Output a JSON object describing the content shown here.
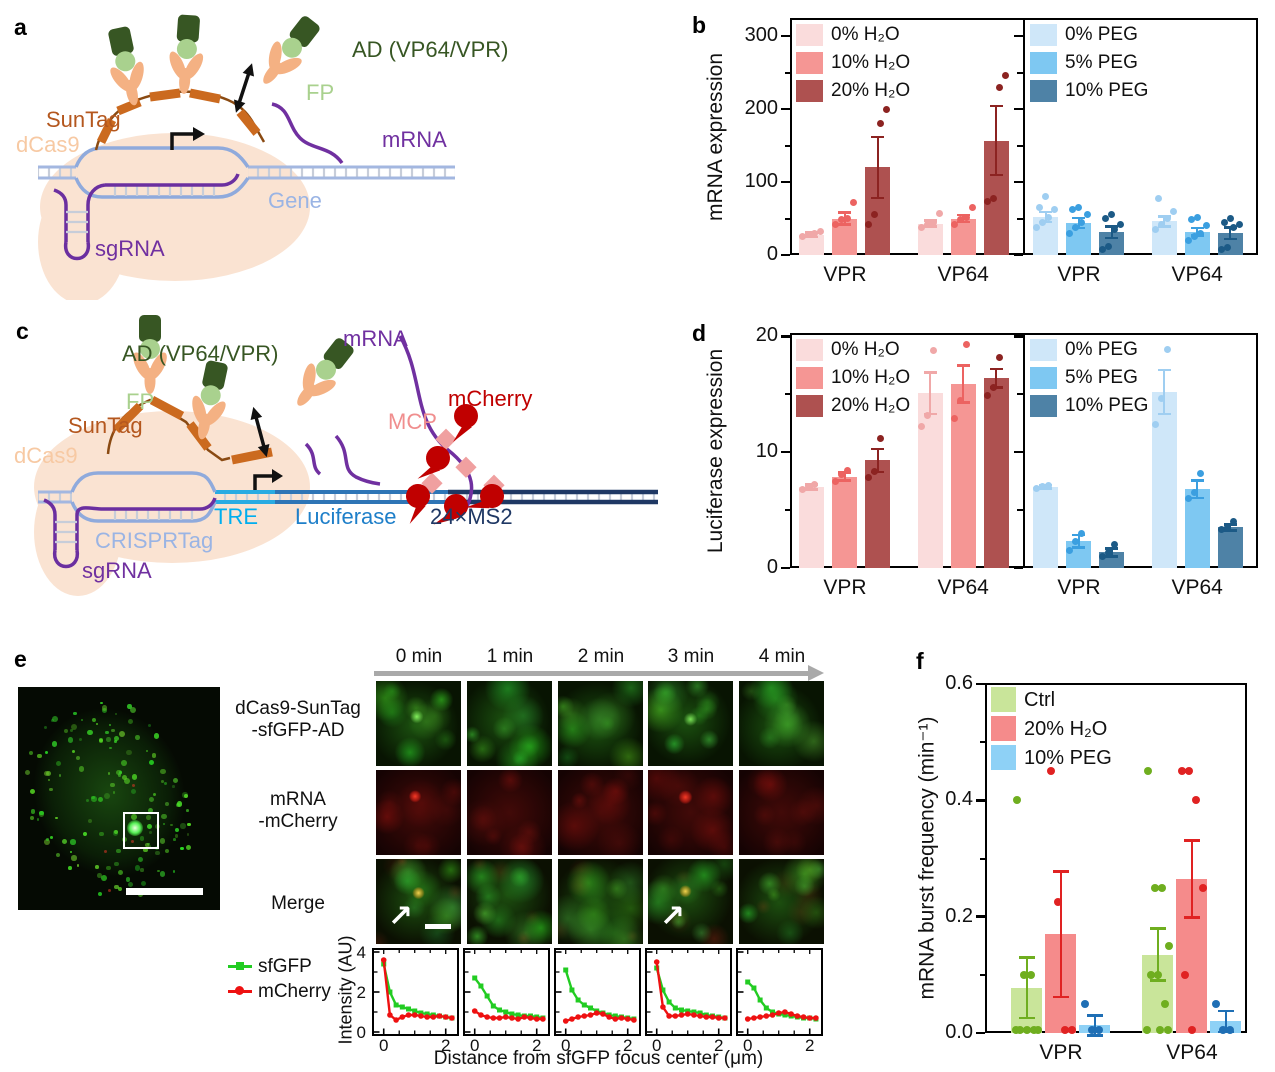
{
  "tags": {
    "a": "a",
    "b": "b",
    "c": "c",
    "d": "d",
    "e": "e",
    "f": "f"
  },
  "panel_a": {
    "labels": {
      "ad": "AD (VP64/VPR)",
      "fp": "FP",
      "suntag": "SunTag",
      "dcas9": "dCas9",
      "mrna": "mRNA",
      "gene": "Gene",
      "sgrna": "sgRNA"
    }
  },
  "panel_c": {
    "labels": {
      "ad": "AD (VP64/VPR)",
      "fp": "FP",
      "suntag": "SunTag",
      "dcas9": "dCas9",
      "mrna": "mRNA",
      "mcp": "MCP",
      "mcherry": "mCherry",
      "tre": "TRE",
      "luciferase": "Luciferase",
      "ms2": "24×MS2",
      "crisprtag": "CRISPRTag",
      "sgrna": "sgRNA"
    }
  },
  "panel_e": {
    "time_labels": [
      "0 min",
      "1 min",
      "2 min",
      "3 min",
      "4 min"
    ],
    "row_labels": [
      {
        "line1": "dCas9-SunTag",
        "line2": "-sfGFP-AD",
        "color": "#2dbe2d"
      },
      {
        "line1": "mRNA",
        "line2": "-mCherry",
        "color": "#e81313"
      },
      {
        "line1": "Merge",
        "line2": "",
        "color": "#c8961e"
      }
    ],
    "legend": [
      {
        "label": "sfGFP",
        "color": "#22cc22"
      },
      {
        "label": "mCherry",
        "color": "#ee1111"
      }
    ]
  },
  "chart_data": [
    {
      "id": "b",
      "type": "bar",
      "ylabel": "mRNA expression",
      "ylim": [
        0,
        325
      ],
      "yticks": [
        0,
        100,
        200,
        300
      ],
      "yticks_minor": [
        50,
        150,
        250
      ],
      "tick_decimals": 0,
      "subpanels": [
        {
          "legend": [
            {
              "label": "0% H₂O",
              "color": "#fadcdc",
              "point_color": "#f0a8a8"
            },
            {
              "label": "10% H₂O",
              "color": "#f59694",
              "point_color": "#ec6361"
            },
            {
              "label": "20% H₂O",
              "color": "#ae5150",
              "point_color": "#8c2321"
            }
          ],
          "groups": [
            {
              "label": "VPR",
              "bars": [
                {
                  "value": 28,
                  "err": 3,
                  "points": [
                    26,
                    28,
                    30,
                    32
                  ]
                },
                {
                  "value": 50,
                  "err": 8,
                  "points": [
                    42,
                    48,
                    50,
                    72
                  ]
                },
                {
                  "value": 120,
                  "err": 42,
                  "points": [
                    42,
                    55,
                    181,
                    200
                  ]
                }
              ]
            },
            {
              "label": "VP64",
              "bars": [
                {
                  "value": 43,
                  "err": 4,
                  "points": [
                    38,
                    42,
                    45,
                    57
                  ]
                },
                {
                  "value": 50,
                  "err": 5,
                  "points": [
                    42,
                    48,
                    52,
                    65
                  ]
                },
                {
                  "value": 157,
                  "err": 47,
                  "points": [
                    73,
                    77,
                    230,
                    246
                  ]
                }
              ]
            }
          ]
        },
        {
          "legend": [
            {
              "label": "0% PEG",
              "color": "#cfe7f9",
              "point_color": "#9fcef1"
            },
            {
              "label": "5% PEG",
              "color": "#7ec8f2",
              "point_color": "#3b9fe0"
            },
            {
              "label": "10% PEG",
              "color": "#4e82a6",
              "point_color": "#1c5a86"
            }
          ],
          "groups": [
            {
              "label": "VPR",
              "bars": [
                {
                  "value": 52,
                  "err": 7,
                  "points": [
                    38,
                    45,
                    52,
                    62,
                    65,
                    80
                  ]
                },
                {
                  "value": 44,
                  "err": 7,
                  "points": [
                    30,
                    38,
                    45,
                    55,
                    62,
                    65
                  ]
                },
                {
                  "value": 31,
                  "err": 8,
                  "points": [
                    8,
                    12,
                    35,
                    42,
                    50,
                    55
                  ]
                }
              ]
            },
            {
              "label": "VP64",
              "bars": [
                {
                  "value": 46,
                  "err": 7,
                  "points": [
                    35,
                    42,
                    50,
                    60,
                    78
                  ]
                },
                {
                  "value": 32,
                  "err": 5,
                  "points": [
                    20,
                    25,
                    30,
                    40,
                    48,
                    52
                  ]
                },
                {
                  "value": 30,
                  "err": 8,
                  "points": [
                    8,
                    10,
                    38,
                    42,
                    45,
                    50
                  ]
                }
              ]
            }
          ]
        }
      ]
    },
    {
      "id": "d",
      "type": "bar",
      "ylabel": "Luciferase expression",
      "ylim": [
        0,
        20.3
      ],
      "yticks": [
        0,
        10,
        20
      ],
      "yticks_minor": [
        5,
        15
      ],
      "tick_decimals": 0,
      "subpanels": [
        {
          "legend": [
            {
              "label": "0% H₂O",
              "color": "#fadcdc",
              "point_color": "#f0a8a8"
            },
            {
              "label": "10% H₂O",
              "color": "#f59694",
              "point_color": "#ec6361"
            },
            {
              "label": "20% H₂O",
              "color": "#ae5150",
              "point_color": "#8c2321"
            }
          ],
          "groups": [
            {
              "label": "VPR",
              "bars": [
                {
                  "value": 7.0,
                  "err": 0.2,
                  "points": [
                    6.8,
                    7.0,
                    7.2
                  ]
                },
                {
                  "value": 7.9,
                  "err": 0.35,
                  "points": [
                    7.5,
                    8.1,
                    8.4
                  ]
                },
                {
                  "value": 9.3,
                  "err": 1.0,
                  "points": [
                    7.8,
                    8.3,
                    11.2
                  ]
                }
              ]
            },
            {
              "label": "VP64",
              "bars": [
                {
                  "value": 15.1,
                  "err": 1.8,
                  "points": [
                    12.2,
                    13.2,
                    18.8
                  ]
                },
                {
                  "value": 15.9,
                  "err": 1.6,
                  "points": [
                    12.9,
                    14.5,
                    19.3
                  ]
                },
                {
                  "value": 16.4,
                  "err": 0.8,
                  "points": [
                    14.9,
                    15.6,
                    18.2
                  ]
                }
              ]
            }
          ]
        },
        {
          "legend": [
            {
              "label": "0% PEG",
              "color": "#cfe7f9",
              "point_color": "#9fcef1"
            },
            {
              "label": "5% PEG",
              "color": "#7ec8f2",
              "point_color": "#3b9fe0"
            },
            {
              "label": "10% PEG",
              "color": "#4e82a6",
              "point_color": "#1c5a86"
            }
          ],
          "groups": [
            {
              "label": "VPR",
              "bars": [
                {
                  "value": 7.0,
                  "err": 0.15,
                  "points": [
                    6.9,
                    7.0,
                    7.15
                  ]
                },
                {
                  "value": 2.3,
                  "err": 0.55,
                  "points": [
                    1.5,
                    2.3,
                    3.0
                  ]
                },
                {
                  "value": 1.35,
                  "err": 0.35,
                  "points": [
                    1.0,
                    1.3,
                    2.0
                  ]
                }
              ]
            },
            {
              "label": "VP64",
              "bars": [
                {
                  "value": 15.2,
                  "err": 1.9,
                  "points": [
                    12.4,
                    14.6,
                    18.9
                  ]
                },
                {
                  "value": 6.8,
                  "err": 0.75,
                  "points": [
                    6.0,
                    6.5,
                    8.2
                  ]
                },
                {
                  "value": 3.5,
                  "err": 0.25,
                  "points": [
                    3.3,
                    3.5,
                    4.0
                  ]
                }
              ]
            }
          ]
        }
      ]
    },
    {
      "id": "f",
      "type": "bar",
      "ylabel": "mRNA burst frequency (min⁻¹)",
      "ylim": [
        0,
        0.602
      ],
      "yticks": [
        0,
        0.2,
        0.4,
        0.6
      ],
      "yticks_minor": [
        0.1,
        0.3,
        0.5
      ],
      "tick_decimals": 1,
      "subpanels": [
        {
          "legend": [
            {
              "label": "Ctrl",
              "color": "#c9e59a",
              "point_color": "#6fae1f"
            },
            {
              "label": "20% H₂O",
              "color": "#f58b8b",
              "point_color": "#e02222"
            },
            {
              "label": "10% PEG",
              "color": "#8ed1f6",
              "point_color": "#1f6fb5"
            }
          ],
          "groups": [
            {
              "label": "VPR",
              "bars": [
                {
                  "value": 0.078,
                  "err": 0.052,
                  "points": [
                    0.4,
                    0.1,
                    0.1,
                    0.005,
                    0.005,
                    0.005,
                    0.005,
                    0.005
                  ]
                },
                {
                  "value": 0.17,
                  "err": 0.108,
                  "points": [
                    0.45,
                    0.225,
                    0.005,
                    0.005
                  ]
                },
                {
                  "value": 0.013,
                  "err": 0.017,
                  "points": [
                    0.05,
                    0.005,
                    0.005
                  ]
                }
              ]
            },
            {
              "label": "VP64",
              "bars": [
                {
                  "value": 0.135,
                  "err": 0.045,
                  "points": [
                    0.45,
                    0.25,
                    0.25,
                    0.15,
                    0.1,
                    0.1,
                    0.05,
                    0.005,
                    0.005,
                    0.005
                  ]
                },
                {
                  "value": 0.265,
                  "err": 0.066,
                  "points": [
                    0.45,
                    0.45,
                    0.4,
                    0.25,
                    0.1,
                    0.005
                  ]
                },
                {
                  "value": 0.02,
                  "err": 0.018,
                  "points": [
                    0.05,
                    0.005,
                    0.005
                  ]
                }
              ]
            }
          ]
        }
      ]
    },
    {
      "id": "e_profiles",
      "type": "line",
      "ylabel": "Intensity (AU)",
      "xlabel": "Distance from sfGFP focus center (μm)",
      "ylim": [
        0,
        4
      ],
      "yticks": [
        0,
        2,
        4
      ],
      "yticks_minor": [
        1,
        3
      ],
      "xticks": [
        0,
        2
      ],
      "xticks_minor": [
        0.5,
        1,
        1.5
      ],
      "x": [
        0,
        0.2,
        0.4,
        0.6,
        0.8,
        1.0,
        1.2,
        1.4,
        1.6,
        1.8,
        2.0,
        2.2
      ],
      "series_names": [
        "sfGFP",
        "mCherry"
      ],
      "colors": {
        "sfGFP": "#22cc22",
        "mCherry": "#ee1111"
      },
      "plots": [
        {
          "time": "0 min",
          "sfGFP": [
            3.4,
            2.0,
            1.35,
            1.25,
            1.15,
            1.05,
            0.95,
            0.9,
            0.85,
            0.8,
            0.75,
            0.7
          ],
          "mCherry": [
            3.6,
            0.85,
            0.6,
            0.75,
            0.85,
            0.85,
            0.8,
            0.75,
            0.75,
            0.8,
            0.75,
            0.7
          ]
        },
        {
          "time": "1 min",
          "sfGFP": [
            2.7,
            2.3,
            1.8,
            1.3,
            1.1,
            1.0,
            0.9,
            0.85,
            0.8,
            0.8,
            0.75,
            0.7
          ],
          "mCherry": [
            1.05,
            0.85,
            0.75,
            0.7,
            0.7,
            0.75,
            0.7,
            0.65,
            0.75,
            0.7,
            0.65,
            0.65
          ]
        },
        {
          "time": "2 min",
          "sfGFP": [
            3.1,
            2.1,
            1.6,
            1.35,
            1.2,
            1.05,
            0.95,
            0.85,
            0.8,
            0.75,
            0.7,
            0.65
          ],
          "mCherry": [
            0.55,
            0.65,
            0.75,
            0.8,
            0.85,
            0.95,
            0.9,
            0.75,
            0.65,
            0.7,
            0.65,
            0.6
          ]
        },
        {
          "time": "3 min",
          "sfGFP": [
            3.2,
            2.1,
            1.5,
            1.2,
            1.1,
            1.05,
            1.0,
            0.95,
            0.85,
            0.8,
            0.75,
            0.7
          ],
          "mCherry": [
            3.5,
            1.25,
            0.8,
            0.8,
            0.85,
            0.9,
            0.85,
            0.8,
            0.75,
            0.75,
            0.7,
            0.7
          ]
        },
        {
          "time": "4 min",
          "sfGFP": [
            2.5,
            2.2,
            1.6,
            1.2,
            1.0,
            0.9,
            0.85,
            0.8,
            0.75,
            0.7,
            0.7,
            0.65
          ],
          "mCherry": [
            0.65,
            0.7,
            0.75,
            0.8,
            0.85,
            0.95,
            1.0,
            0.9,
            0.8,
            0.75,
            0.7,
            0.7
          ]
        }
      ]
    }
  ]
}
